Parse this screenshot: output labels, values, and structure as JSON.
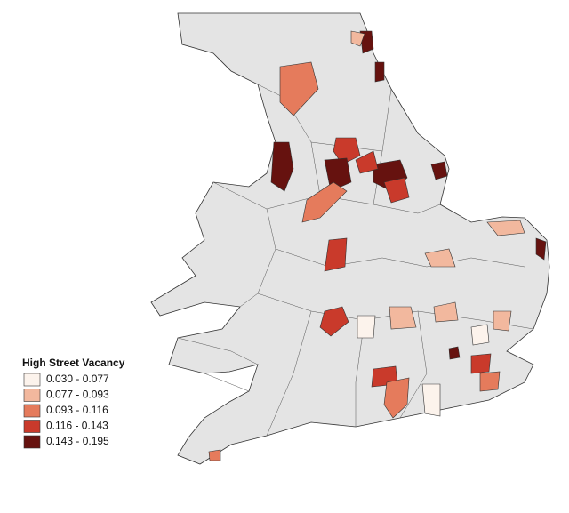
{
  "legend": {
    "title": "High Street Vacancy",
    "items": [
      {
        "label": "0.030 - 0.077",
        "color": "#fcf3ec"
      },
      {
        "label": "0.077 - 0.093",
        "color": "#f2b89e"
      },
      {
        "label": "0.093 - 0.116",
        "color": "#e57b5c"
      },
      {
        "label": "0.116 - 0.143",
        "color": "#c93a2b"
      },
      {
        "label": "0.143 - 0.195",
        "color": "#66120f"
      }
    ]
  }
}
